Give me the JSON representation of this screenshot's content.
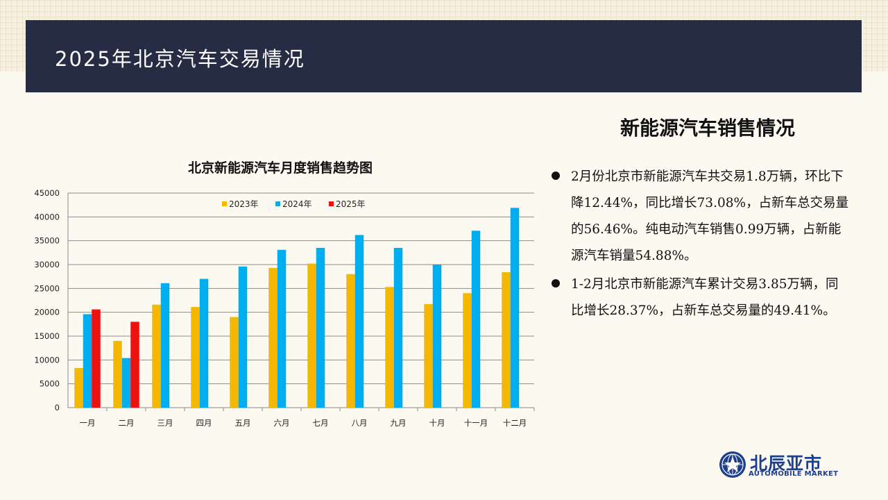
{
  "header": {
    "title": "2025年北京汽车交易情况"
  },
  "section": {
    "title": "新能源汽车销售情况",
    "bullets": [
      "2月份北京市新能源汽车共交易1.8万辆，环比下降12.44%，同比增长73.08%，占新车总交易量的56.46%。纯电动汽车销售0.99万辆，占新能源汽车销量54.88%。",
      "1-2月北京市新能源汽车累计交易3.85万辆，同比增长28.37%，占新车总交易量的49.41%。"
    ]
  },
  "logo": {
    "cn": "北辰亚市",
    "en": "AUTOMOBILE MARKET"
  },
  "chart_data": {
    "type": "bar",
    "title": "北京新能源汽车月度销售趋势图",
    "categories": [
      "一月",
      "二月",
      "三月",
      "四月",
      "五月",
      "六月",
      "七月",
      "八月",
      "九月",
      "十月",
      "十一月",
      "十二月"
    ],
    "series": [
      {
        "name": "2023年",
        "color": "#f5b800",
        "values": [
          8300,
          14000,
          21600,
          21100,
          19000,
          29300,
          30200,
          28000,
          25300,
          21700,
          24000,
          28400
        ]
      },
      {
        "name": "2024年",
        "color": "#00aeef",
        "values": [
          19600,
          10400,
          26100,
          27000,
          29600,
          33100,
          33500,
          36200,
          33500,
          30000,
          37100,
          41900
        ]
      },
      {
        "name": "2025年",
        "color": "#ee1111",
        "values": [
          20600,
          18000,
          null,
          null,
          null,
          null,
          null,
          null,
          null,
          null,
          null,
          null
        ]
      }
    ],
    "ylim": [
      0,
      45000
    ],
    "yticks": [
      0,
      5000,
      10000,
      15000,
      20000,
      25000,
      30000,
      35000,
      40000,
      45000
    ],
    "grid": true,
    "legend_position": "top-center"
  }
}
